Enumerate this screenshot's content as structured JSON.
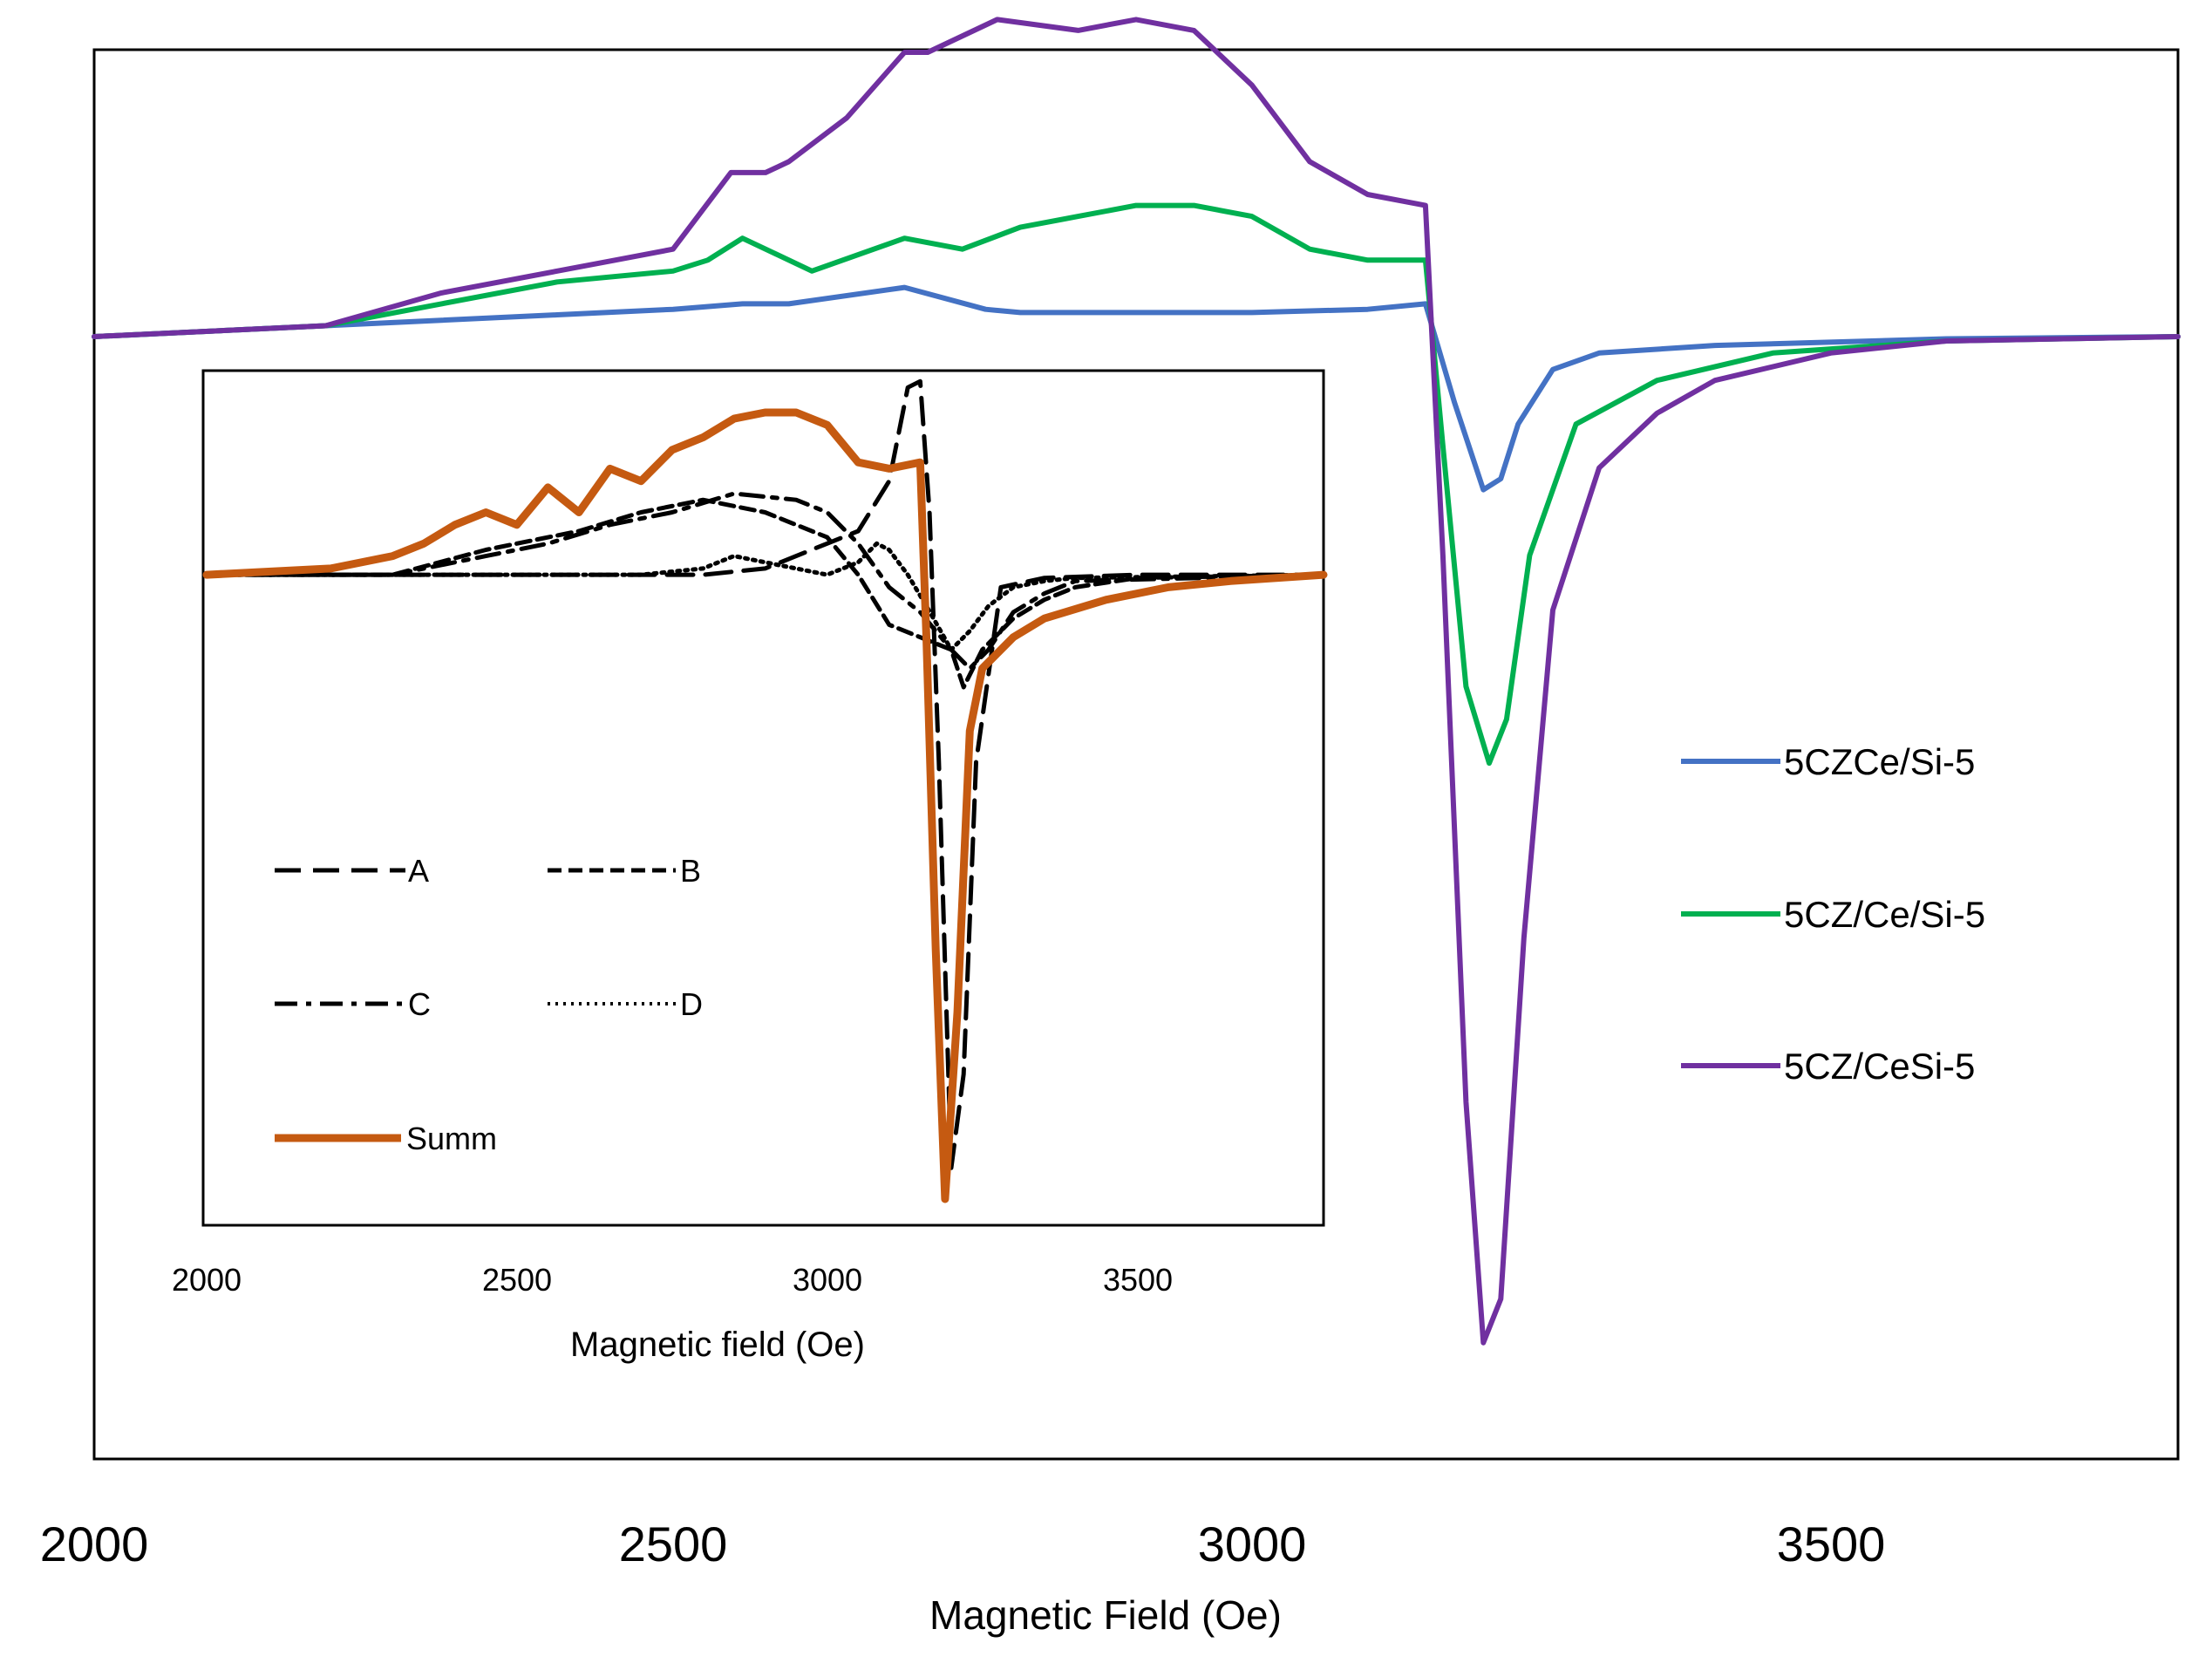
{
  "chart_data": [
    {
      "id": "main",
      "type": "line",
      "title": "",
      "xlabel": "Magnetic Field (Oe)",
      "ylabel": "",
      "xlim": [
        2000,
        3800
      ],
      "ylim": [
        -1.0,
        0.26
      ],
      "xticks": [
        2000,
        2500,
        3000,
        3500
      ],
      "xtick_labels": [
        "2000",
        "2500",
        "3000",
        "3500"
      ],
      "legend_position": "right",
      "series": [
        {
          "name": "5CZCe/Si-5",
          "color": "#4472C4",
          "x": [
            2000,
            2200,
            2400,
            2500,
            2560,
            2600,
            2700,
            2770,
            2800,
            2900,
            3000,
            3100,
            3150,
            3175,
            3200,
            3215,
            3230,
            3260,
            3300,
            3400,
            3600,
            3800
          ],
          "y": [
            0.0,
            0.01,
            0.02,
            0.025,
            0.03,
            0.03,
            0.045,
            0.025,
            0.022,
            0.022,
            0.022,
            0.025,
            0.03,
            -0.06,
            -0.14,
            -0.13,
            -0.08,
            -0.03,
            -0.015,
            -0.008,
            -0.002,
            0.0
          ]
        },
        {
          "name": "5CZ/Ce/Si-5",
          "color": "#00B050",
          "x": [
            2000,
            2200,
            2300,
            2400,
            2500,
            2530,
            2560,
            2620,
            2700,
            2750,
            2800,
            2850,
            2900,
            2950,
            3000,
            3050,
            3100,
            3150,
            3165,
            3185,
            3205,
            3220,
            3240,
            3280,
            3350,
            3450,
            3600,
            3800
          ],
          "y": [
            0.0,
            0.01,
            0.03,
            0.05,
            0.06,
            0.07,
            0.09,
            0.06,
            0.09,
            0.08,
            0.1,
            0.11,
            0.12,
            0.12,
            0.11,
            0.08,
            0.07,
            0.07,
            -0.1,
            -0.32,
            -0.39,
            -0.35,
            -0.2,
            -0.08,
            -0.04,
            -0.015,
            -0.004,
            0.0
          ]
        },
        {
          "name": "5CZ/CeSi-5",
          "color": "#7030A0",
          "x": [
            2000,
            2200,
            2300,
            2400,
            2450,
            2500,
            2550,
            2580,
            2600,
            2650,
            2700,
            2720,
            2780,
            2850,
            2900,
            2950,
            3000,
            3050,
            3100,
            3150,
            3165,
            3185,
            3200,
            3215,
            3235,
            3260,
            3300,
            3350,
            3400,
            3500,
            3600,
            3800
          ],
          "y": [
            0.0,
            0.01,
            0.04,
            0.06,
            0.07,
            0.08,
            0.15,
            0.15,
            0.16,
            0.2,
            0.26,
            0.26,
            0.29,
            0.28,
            0.29,
            0.28,
            0.23,
            0.16,
            0.13,
            0.12,
            -0.2,
            -0.7,
            -0.92,
            -0.88,
            -0.55,
            -0.25,
            -0.12,
            -0.07,
            -0.04,
            -0.015,
            -0.004,
            0.0
          ]
        }
      ]
    },
    {
      "id": "inset",
      "type": "line",
      "title": "",
      "xlabel": "Magnetic field (Oe)",
      "ylabel": "",
      "xlim": [
        2000,
        3800
      ],
      "ylim": [
        -1.0,
        0.32
      ],
      "xticks": [
        2000,
        2500,
        3000,
        3500
      ],
      "xtick_labels": [
        "2000",
        "2500",
        "3000",
        "3500"
      ],
      "legend_position": "lower-left",
      "series": [
        {
          "name": "A",
          "color": "#000000",
          "dash": "long-dash",
          "x": [
            2000,
            2500,
            2700,
            2800,
            2900,
            3000,
            3050,
            3100,
            3130,
            3150,
            3165,
            3180,
            3200,
            3220,
            3240,
            3280,
            3350,
            3500,
            3800
          ],
          "y": [
            0.0,
            0.0,
            0.0,
            0.0,
            0.01,
            0.05,
            0.07,
            0.15,
            0.3,
            0.31,
            0.1,
            -0.3,
            -0.95,
            -0.8,
            -0.3,
            -0.02,
            -0.005,
            0.0,
            0.0
          ]
        },
        {
          "name": "B",
          "color": "#000000",
          "dash": "short-dash",
          "x": [
            2000,
            2300,
            2450,
            2500,
            2600,
            2700,
            2800,
            2900,
            3000,
            3050,
            3100,
            3150,
            3200,
            3220,
            3250,
            3300,
            3350,
            3400,
            3500,
            3800
          ],
          "y": [
            0.0,
            0.0,
            0.04,
            0.05,
            0.07,
            0.1,
            0.12,
            0.1,
            0.06,
            0.0,
            -0.08,
            -0.1,
            -0.12,
            -0.18,
            -0.12,
            -0.07,
            -0.04,
            -0.02,
            -0.005,
            0.0
          ]
        },
        {
          "name": "C",
          "color": "#000000",
          "dash": "dash-dot",
          "x": [
            2000,
            2300,
            2450,
            2550,
            2650,
            2750,
            2850,
            2950,
            3000,
            3050,
            3100,
            3150,
            3200,
            3230,
            3260,
            3300,
            3350,
            3400,
            3800
          ],
          "y": [
            0.0,
            0.0,
            0.03,
            0.05,
            0.08,
            0.1,
            0.13,
            0.12,
            0.1,
            0.05,
            -0.02,
            -0.06,
            -0.12,
            -0.15,
            -0.12,
            -0.06,
            -0.03,
            -0.01,
            0.0
          ]
        },
        {
          "name": "D",
          "color": "#000000",
          "dash": "dotted",
          "x": [
            2000,
            2700,
            2800,
            2850,
            2900,
            2950,
            3000,
            3050,
            3080,
            3100,
            3130,
            3160,
            3200,
            3230,
            3260,
            3300,
            3350,
            3400,
            3800
          ],
          "y": [
            0.0,
            0.0,
            0.01,
            0.03,
            0.02,
            0.01,
            0.0,
            0.02,
            0.05,
            0.04,
            0.0,
            -0.05,
            -0.12,
            -0.09,
            -0.05,
            -0.02,
            -0.01,
            -0.005,
            0.0
          ]
        },
        {
          "name": "Summ",
          "color": "#C55A11",
          "dash": "solid",
          "x": [
            2000,
            2200,
            2300,
            2350,
            2400,
            2450,
            2500,
            2550,
            2600,
            2650,
            2700,
            2750,
            2800,
            2850,
            2900,
            2950,
            3000,
            3050,
            3100,
            3150,
            3160,
            3175,
            3190,
            3210,
            3230,
            3250,
            3300,
            3350,
            3450,
            3550,
            3650,
            3800
          ],
          "y": [
            0.0,
            0.01,
            0.03,
            0.05,
            0.08,
            0.1,
            0.08,
            0.14,
            0.1,
            0.17,
            0.15,
            0.2,
            0.22,
            0.25,
            0.26,
            0.26,
            0.24,
            0.18,
            0.17,
            0.18,
            -0.1,
            -0.6,
            -1.0,
            -0.7,
            -0.25,
            -0.15,
            -0.1,
            -0.07,
            -0.04,
            -0.02,
            -0.01,
            0.0
          ]
        }
      ]
    }
  ]
}
